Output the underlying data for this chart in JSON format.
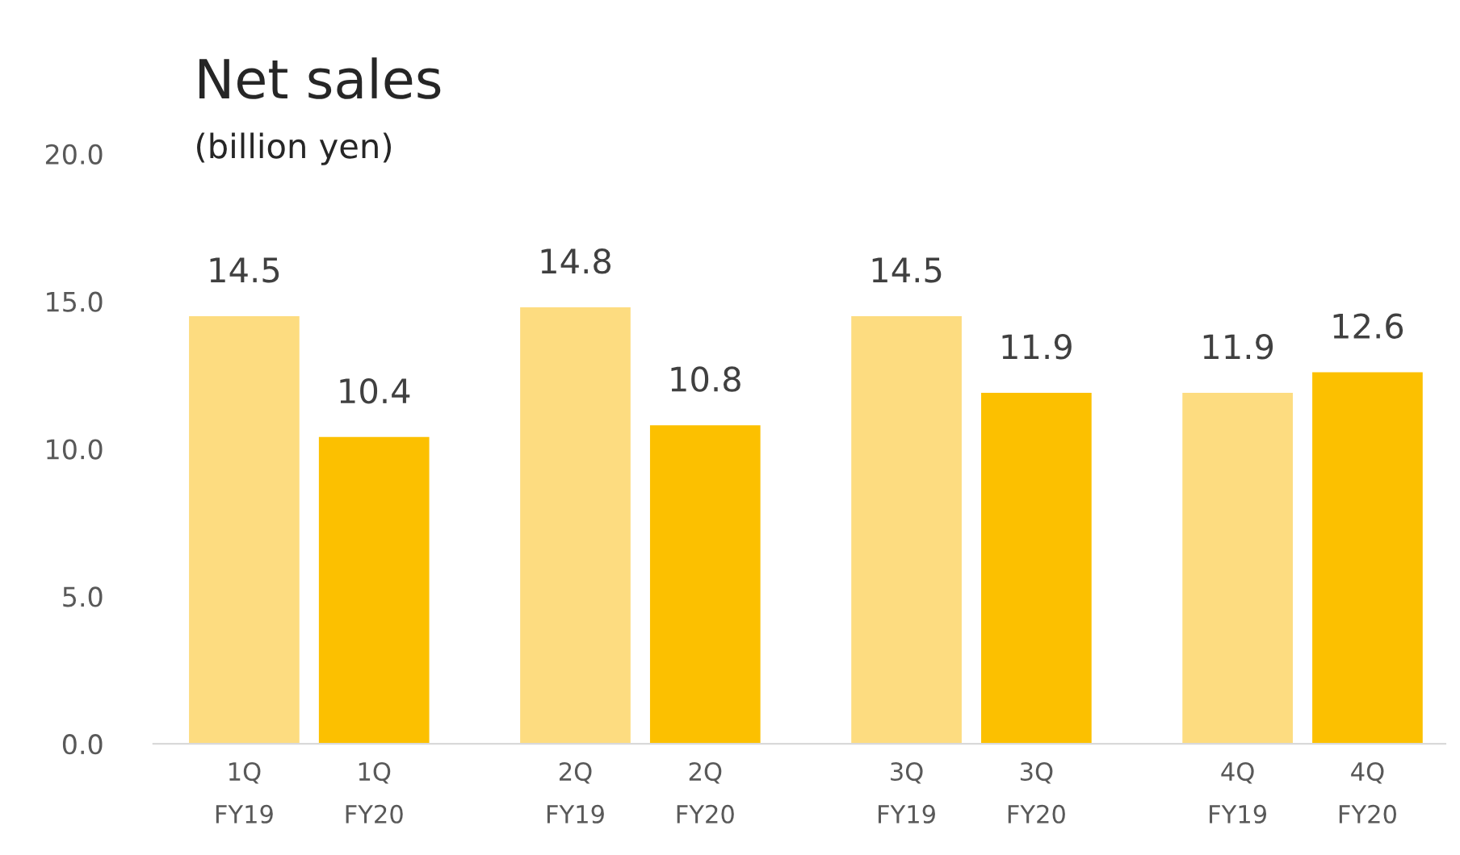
{
  "chart_data": {
    "type": "bar",
    "title": "Net sales",
    "subtitle": "(billion yen)",
    "categories": [
      "1Q\nFY19",
      "1Q\nFY20",
      "2Q\nFY19",
      "2Q\nFY20",
      "3Q\nFY19",
      "3Q\nFY20",
      "4Q\nFY19",
      "4Q\nFY20"
    ],
    "values": [
      14.5,
      10.4,
      14.8,
      10.8,
      14.5,
      11.9,
      11.9,
      12.6
    ],
    "colors": [
      "#fddc80",
      "#fcc000",
      "#fddc80",
      "#fcc000",
      "#fddc80",
      "#fcc000",
      "#fddc80",
      "#fcc000"
    ],
    "ylim": [
      0,
      20
    ],
    "yticks": [
      {
        "value": 0,
        "label": "0.0"
      },
      {
        "value": 5,
        "label": "5.0"
      },
      {
        "value": 10,
        "label": "10.0"
      },
      {
        "value": 15,
        "label": "15.0"
      },
      {
        "value": 20,
        "label": "20.0"
      }
    ],
    "data_labels": true,
    "grid": false,
    "legend": false
  }
}
